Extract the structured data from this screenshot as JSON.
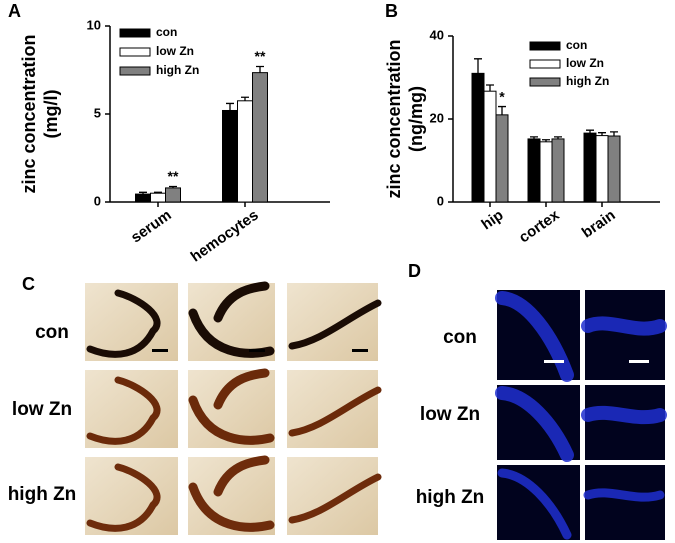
{
  "chart_data": [
    {
      "type": "bar",
      "panel": "A",
      "ylabel": [
        "zinc concentration",
        "(mg/l)"
      ],
      "categories": [
        "serum",
        "hemocytes"
      ],
      "series": [
        {
          "name": "con",
          "color": "#000000",
          "values": [
            0.45,
            5.2
          ],
          "errors": [
            0.1,
            0.4
          ]
        },
        {
          "name": "low Zn",
          "color": "#ffffff",
          "values": [
            0.5,
            5.75
          ],
          "errors": [
            0.05,
            0.2
          ]
        },
        {
          "name": "high Zn",
          "color": "#808080",
          "values": [
            0.8,
            7.35
          ],
          "errors": [
            0.08,
            0.35
          ],
          "marks": [
            "**",
            "**"
          ]
        }
      ],
      "ylim": [
        0,
        10
      ],
      "yticks": [
        0,
        5,
        10
      ],
      "legend": "upper left"
    },
    {
      "type": "bar",
      "panel": "B",
      "ylabel": [
        "zinc concentration",
        "(ng/mg)"
      ],
      "categories": [
        "hip",
        "cortex",
        "brain"
      ],
      "series": [
        {
          "name": "con",
          "color": "#000000",
          "values": [
            31,
            15.2,
            16.6
          ],
          "errors": [
            3.5,
            0.5,
            0.7
          ]
        },
        {
          "name": "low Zn",
          "color": "#ffffff",
          "values": [
            26.7,
            14.5,
            16
          ],
          "errors": [
            1.5,
            0.5,
            0.7
          ]
        },
        {
          "name": "high Zn",
          "color": "#808080",
          "values": [
            21,
            15.2,
            15.9
          ],
          "errors": [
            2,
            0.5,
            1
          ],
          "marks": [
            "*",
            null,
            null
          ]
        }
      ],
      "ylim": [
        0,
        40
      ],
      "yticks": [
        0,
        20,
        40
      ],
      "legend": "upper right"
    }
  ],
  "figure": {
    "panel_c": "C",
    "panel_d": "D",
    "c_rows": [
      "con",
      "low Zn",
      "high Zn"
    ],
    "d_rows": [
      "con",
      "low Zn",
      "high Zn"
    ]
  }
}
